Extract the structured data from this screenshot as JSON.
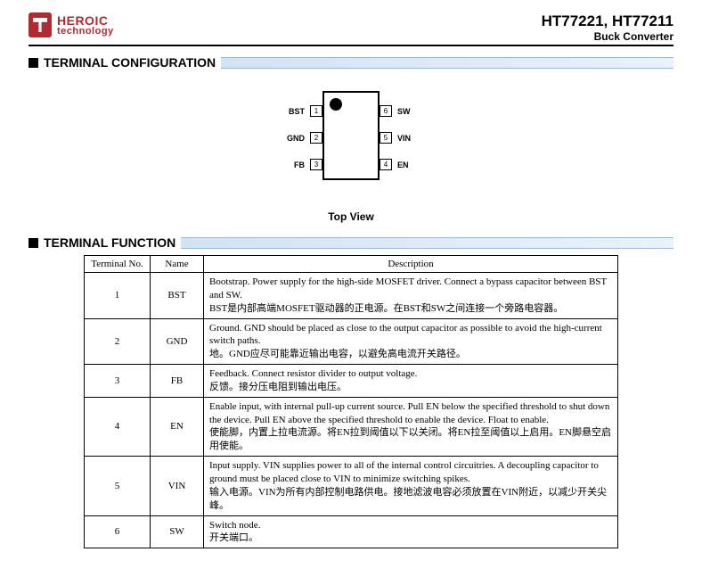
{
  "header": {
    "logo_line1": "HEROIC",
    "logo_line2": "technology",
    "part_number": "HT77221, HT77211",
    "subtitle": "Buck Converter"
  },
  "sections": {
    "terminal_config": "TERMINAL CONFIGURATION",
    "terminal_function": "TERMINAL FUNCTION"
  },
  "diagram": {
    "top_view": "Top View",
    "pins_left": [
      {
        "num": "1",
        "label": "BST"
      },
      {
        "num": "2",
        "label": "GND"
      },
      {
        "num": "3",
        "label": "FB"
      }
    ],
    "pins_right": [
      {
        "num": "6",
        "label": "SW"
      },
      {
        "num": "5",
        "label": "VIN"
      },
      {
        "num": "4",
        "label": "EN"
      }
    ]
  },
  "table": {
    "headers": {
      "no": "Terminal No.",
      "name": "Name",
      "desc": "Description"
    },
    "rows": [
      {
        "no": "1",
        "name": "BST",
        "desc": "Bootstrap. Power supply for the high-side MOSFET driver. Connect a bypass capacitor between BST and SW.\nBST是内部高端MOSFET驱动器的正电源。在BST和SW之间连接一个旁路电容器。"
      },
      {
        "no": "2",
        "name": "GND",
        "desc": "Ground. GND should be placed as close to the output capacitor as possible to avoid the high-current switch paths.\n地。GND应尽可能靠近输出电容，以避免高电流开关路径。"
      },
      {
        "no": "3",
        "name": "FB",
        "desc": "Feedback. Connect resistor divider to output voltage.\n反馈。接分压电阻到输出电压。"
      },
      {
        "no": "4",
        "name": "EN",
        "desc": "Enable input, with internal pull-up current source. Pull EN below the specified threshold to shut down the device. Pull EN above the specified threshold to enable the device. Float to enable.\n使能脚，内置上拉电流源。将EN拉到阈值以下以关闭。将EN拉至阈值以上启用。EN脚悬空启用使能。"
      },
      {
        "no": "5",
        "name": "VIN",
        "desc": "Input supply. VIN supplies power to all of the internal control circuitries. A decoupling capacitor to ground must be placed close to VIN to minimize switching spikes.\n输入电源。VIN为所有内部控制电路供电。接地滤波电容必须放置在VIN附近，以减少开关尖峰。"
      },
      {
        "no": "6",
        "name": "SW",
        "desc": "Switch node.\n开关端口。"
      }
    ]
  },
  "colors": {
    "brand_red": "#b02a30",
    "bar_gradient_from": "#d3e3f3",
    "bar_gradient_to": "#eaf2fa",
    "bar_border": "#9bb9d6"
  }
}
